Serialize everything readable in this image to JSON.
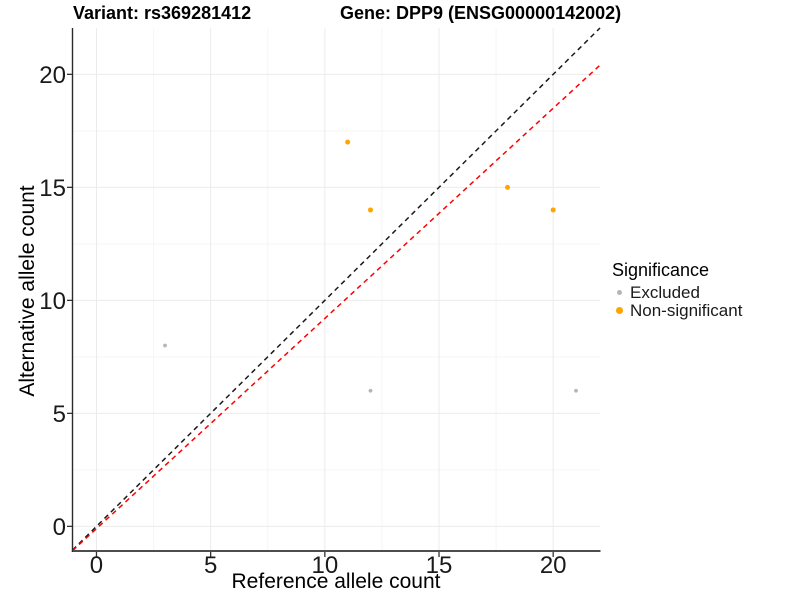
{
  "title": {
    "variant": "Variant: rs369281412",
    "gene": "Gene: DPP9 (ENSG00000142002)"
  },
  "chart_data": {
    "type": "scatter",
    "title": "Variant: rs369281412   Gene: DPP9 (ENSG00000142002)",
    "xlabel": "Reference allele count",
    "ylabel": "Alternative allele count",
    "xlim": [
      -1.05,
      22.05
    ],
    "ylim": [
      -1.09,
      22.05
    ],
    "x_ticks": [
      0,
      5,
      10,
      15,
      20
    ],
    "y_ticks": [
      0,
      5,
      10,
      15,
      20
    ],
    "x_minor_ticks": [
      2.5,
      7.5,
      12.5,
      17.5
    ],
    "y_minor_ticks": [
      2.5,
      7.5,
      12.5,
      17.5
    ],
    "grid": true,
    "series": [
      {
        "name": "Excluded",
        "color": "#B5B5B5",
        "point_radius": 1.9,
        "legend_radius": 2.7,
        "points": [
          [
            3,
            8
          ],
          [
            12,
            6
          ],
          [
            21,
            6
          ]
        ]
      },
      {
        "name": "Non-significant",
        "color": "#FFA500",
        "point_radius": 2.5,
        "legend_radius": 3.4,
        "points": [
          [
            11,
            17
          ],
          [
            12,
            14
          ],
          [
            18,
            15
          ],
          [
            20,
            14
          ]
        ]
      }
    ],
    "lines": [
      {
        "name": "identity-line",
        "color": "#1A1A1A",
        "slope": 1,
        "intercept": 0,
        "style": "dashed"
      },
      {
        "name": "fitted-ratio-line",
        "color": "#FF0000",
        "slope": 0.93,
        "intercept": -0.1,
        "style": "dashed"
      }
    ],
    "legend": {
      "title": "Significance",
      "position": "right"
    },
    "colors": {
      "major_grid": "#EBEBEB",
      "minor_grid": "#F5F5F5",
      "axis_line_x": "#4D4D4D",
      "axis_line_y": "#2B2B2B",
      "tick_text": "#1A1A1A"
    }
  }
}
